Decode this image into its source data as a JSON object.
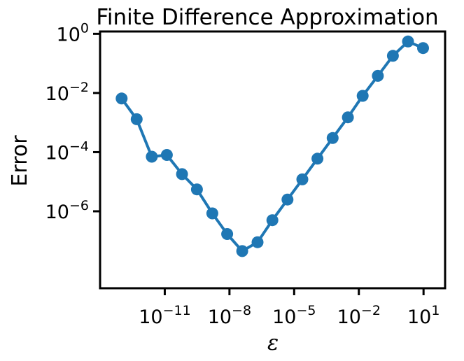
{
  "chart_data": {
    "type": "line",
    "title": "Finite Difference Approximation",
    "xlabel": "ε",
    "ylabel": "Error",
    "x_scale": "log",
    "y_scale": "log",
    "xlim": [
      1e-14,
      100
    ],
    "ylim": [
      2.5e-09,
      1.2
    ],
    "grid": false,
    "legend": "none",
    "series_color": "#1f77b4",
    "x_ticks": [
      {
        "base": "10",
        "exp": "−11",
        "value": 1e-11
      },
      {
        "base": "10",
        "exp": "−8",
        "value": 1e-08
      },
      {
        "base": "10",
        "exp": "−5",
        "value": 1e-05
      },
      {
        "base": "10",
        "exp": "−2",
        "value": 0.01
      },
      {
        "base": "10",
        "exp": "1",
        "value": 10
      }
    ],
    "y_ticks": [
      {
        "base": "10",
        "exp": "0",
        "value": 1
      },
      {
        "base": "10",
        "exp": "−2",
        "value": 0.01
      },
      {
        "base": "10",
        "exp": "−4",
        "value": 0.0001
      },
      {
        "base": "10",
        "exp": "−6",
        "value": 1e-06
      }
    ],
    "series": [
      {
        "x": [
          1e-13,
          5e-13,
          2.5e-12,
          1.25e-11,
          6.3e-11,
          3.1e-10,
          1.6e-09,
          7.8e-09,
          3.9e-08,
          2e-07,
          9.8e-07,
          4.9e-06,
          2.4e-05,
          0.00012,
          0.00061,
          0.0031,
          0.015,
          0.076,
          0.38,
          1.9,
          9.5
        ],
        "y": [
          0.0065,
          0.0013,
          7e-05,
          8e-05,
          1.8e-05,
          5.5e-06,
          8.5e-07,
          1.7e-07,
          4.5e-08,
          9e-08,
          5e-07,
          2.5e-06,
          1.2e-05,
          6e-05,
          0.0003,
          0.0015,
          0.008,
          0.038,
          0.18,
          0.55,
          0.33
        ]
      }
    ]
  }
}
